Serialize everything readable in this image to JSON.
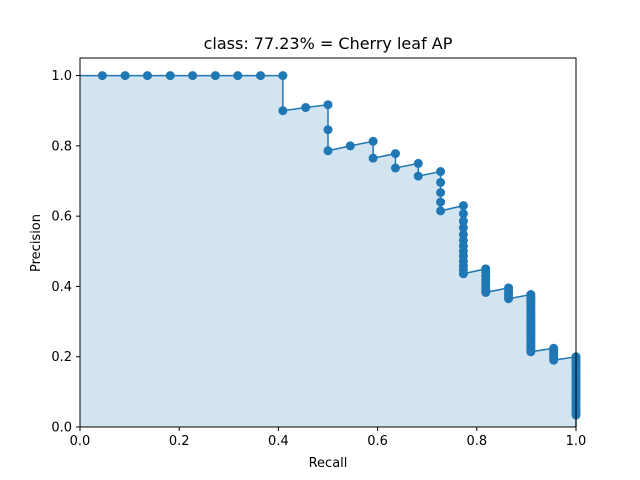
{
  "chart_data": {
    "type": "line",
    "title": "class: 77.23% = Cherry leaf AP",
    "xlabel": "Recall",
    "ylabel": "Precision",
    "xlim": [
      0.0,
      1.0
    ],
    "ylim": [
      0.0,
      1.05
    ],
    "xticks": [
      "0.0",
      "0.2",
      "0.4",
      "0.6",
      "0.8",
      "1.0"
    ],
    "yticks": [
      "0.0",
      "0.2",
      "0.4",
      "0.6",
      "0.8",
      "1.0"
    ],
    "grid": false,
    "legend": "none",
    "colors": {
      "line": "#1f77b4",
      "fill": "#1f77b4",
      "fill_alpha": 0.2,
      "bg": "#ffffff"
    },
    "series": [
      {
        "values_note": "",
        "points": [
          [
            0.0,
            1.0
          ],
          [
            0.045,
            1.0
          ],
          [
            0.091,
            1.0
          ],
          [
            0.136,
            1.0
          ],
          [
            0.182,
            1.0
          ],
          [
            0.227,
            1.0
          ],
          [
            0.273,
            1.0
          ],
          [
            0.318,
            1.0
          ],
          [
            0.364,
            1.0
          ],
          [
            0.409,
            1.0
          ],
          [
            0.409,
            0.9
          ],
          [
            0.455,
            0.909
          ],
          [
            0.5,
            0.917
          ],
          [
            0.5,
            0.846
          ],
          [
            0.5,
            0.786
          ],
          [
            0.545,
            0.8
          ],
          [
            0.591,
            0.813
          ],
          [
            0.591,
            0.765
          ],
          [
            0.636,
            0.778
          ],
          [
            0.636,
            0.737
          ],
          [
            0.682,
            0.75
          ],
          [
            0.682,
            0.714
          ],
          [
            0.727,
            0.727
          ],
          [
            0.727,
            0.696
          ],
          [
            0.727,
            0.667
          ],
          [
            0.727,
            0.64
          ],
          [
            0.727,
            0.615
          ],
          [
            0.773,
            0.63
          ],
          [
            0.773,
            0.607
          ],
          [
            0.773,
            0.586
          ],
          [
            0.773,
            0.567
          ],
          [
            0.773,
            0.548
          ],
          [
            0.773,
            0.531
          ],
          [
            0.773,
            0.515
          ],
          [
            0.773,
            0.5
          ],
          [
            0.773,
            0.486
          ],
          [
            0.773,
            0.472
          ],
          [
            0.773,
            0.459
          ],
          [
            0.773,
            0.447
          ],
          [
            0.773,
            0.436
          ],
          [
            0.818,
            0.45
          ],
          [
            0.818,
            0.439
          ],
          [
            0.818,
            0.429
          ],
          [
            0.818,
            0.419
          ],
          [
            0.818,
            0.409
          ],
          [
            0.818,
            0.4
          ],
          [
            0.818,
            0.391
          ],
          [
            0.818,
            0.383
          ],
          [
            0.864,
            0.396
          ],
          [
            0.864,
            0.388
          ],
          [
            0.864,
            0.38
          ],
          [
            0.864,
            0.373
          ],
          [
            0.864,
            0.365
          ],
          [
            0.909,
            0.377
          ],
          [
            0.909,
            0.37
          ],
          [
            0.909,
            0.364
          ],
          [
            0.909,
            0.357
          ],
          [
            0.909,
            0.351
          ],
          [
            0.909,
            0.345
          ],
          [
            0.909,
            0.339
          ],
          [
            0.909,
            0.333
          ],
          [
            0.909,
            0.328
          ],
          [
            0.909,
            0.323
          ],
          [
            0.909,
            0.317
          ],
          [
            0.909,
            0.312
          ],
          [
            0.909,
            0.306
          ],
          [
            0.909,
            0.301
          ],
          [
            0.909,
            0.296
          ],
          [
            0.909,
            0.29
          ],
          [
            0.909,
            0.285
          ],
          [
            0.909,
            0.28
          ],
          [
            0.909,
            0.274
          ],
          [
            0.909,
            0.269
          ],
          [
            0.909,
            0.263
          ],
          [
            0.909,
            0.258
          ],
          [
            0.909,
            0.252
          ],
          [
            0.909,
            0.247
          ],
          [
            0.909,
            0.241
          ],
          [
            0.909,
            0.236
          ],
          [
            0.909,
            0.23
          ],
          [
            0.909,
            0.225
          ],
          [
            0.909,
            0.219
          ],
          [
            0.909,
            0.214
          ],
          [
            0.955,
            0.224
          ],
          [
            0.955,
            0.217
          ],
          [
            0.955,
            0.21
          ],
          [
            0.955,
            0.203
          ],
          [
            0.955,
            0.196
          ],
          [
            0.955,
            0.19
          ],
          [
            1.0,
            0.2
          ],
          [
            1.0,
            0.193
          ],
          [
            1.0,
            0.186
          ],
          [
            1.0,
            0.179
          ],
          [
            1.0,
            0.172
          ],
          [
            1.0,
            0.165
          ],
          [
            1.0,
            0.158
          ],
          [
            1.0,
            0.151
          ],
          [
            1.0,
            0.144
          ],
          [
            1.0,
            0.137
          ],
          [
            1.0,
            0.13
          ],
          [
            1.0,
            0.123
          ],
          [
            1.0,
            0.116
          ],
          [
            1.0,
            0.109
          ],
          [
            1.0,
            0.102
          ],
          [
            1.0,
            0.095
          ],
          [
            1.0,
            0.088
          ],
          [
            1.0,
            0.081
          ],
          [
            1.0,
            0.074
          ],
          [
            1.0,
            0.067
          ],
          [
            1.0,
            0.06
          ],
          [
            1.0,
            0.053
          ],
          [
            1.0,
            0.046
          ],
          [
            1.0,
            0.04
          ],
          [
            1.0,
            0.034
          ],
          [
            1.0,
            0.0
          ]
        ]
      }
    ]
  }
}
